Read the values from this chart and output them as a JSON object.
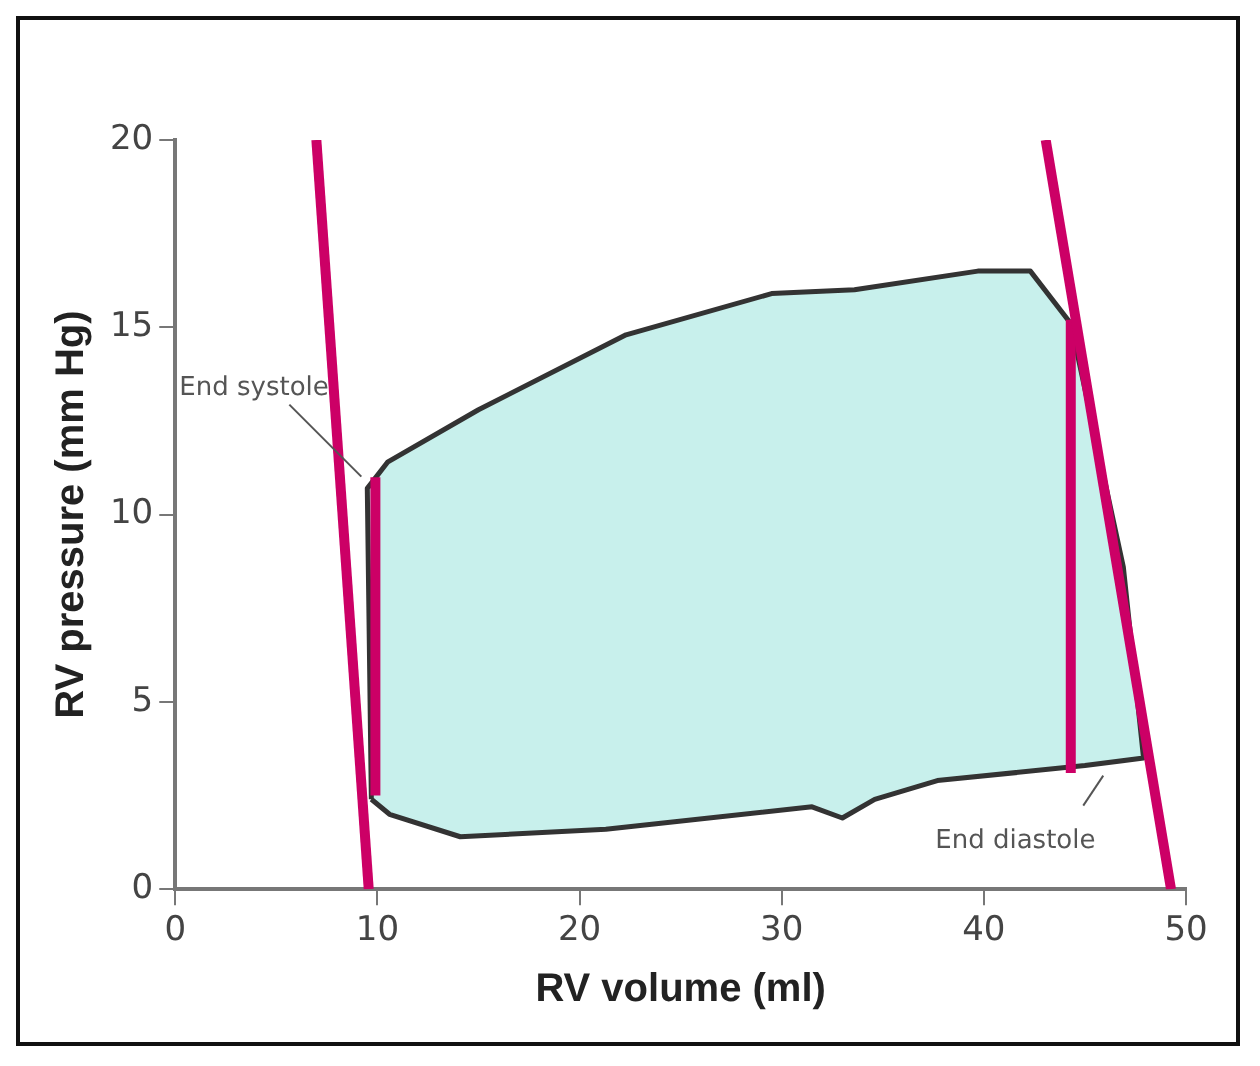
{
  "chart_data": {
    "type": "line",
    "xlabel": "RV volume (ml)",
    "ylabel": "RV pressure (mm Hg)",
    "xlim": [
      0,
      50
    ],
    "xticks": [
      0,
      10,
      20,
      30,
      40,
      50
    ],
    "ylim": [
      0,
      20
    ],
    "yticks": [
      0,
      5,
      10,
      15,
      20
    ],
    "grid": false,
    "legend": false,
    "marker": "none",
    "line_style": "solid",
    "series": [
      {
        "type": "area",
        "color": "#c8f0ec",
        "x": [
          9.7,
          9.5,
          10.5,
          15,
          22.3,
          29.5,
          33.6,
          39.7,
          42.3,
          44.3,
          46.9,
          47.9,
          45,
          37.7,
          34.6,
          33,
          31.5,
          21.3,
          14.1,
          10.6,
          9.7
        ],
        "values": [
          2.4,
          10.7,
          11.4,
          12.8,
          14.8,
          15.9,
          16,
          16.5,
          16.5,
          15.1,
          8.6,
          3.5,
          3.3,
          2.9,
          2.4,
          1.9,
          2.2,
          1.6,
          1.4,
          2,
          2.4
        ]
      },
      {
        "color": "#cc0066",
        "x": [
          6.98,
          9.57
        ],
        "values": [
          20,
          0
        ]
      },
      {
        "color": "#cc0066",
        "x": [
          43.06,
          49.26
        ],
        "values": [
          20,
          0
        ]
      },
      {
        "color": "#cc0066",
        "x": [
          9.9,
          9.9
        ],
        "values": [
          2.5,
          11
        ]
      },
      {
        "color": "#cc0066",
        "x": [
          44.3,
          44.3
        ],
        "values": [
          3.1,
          15.2
        ]
      }
    ],
    "annotations": [
      {
        "text": "End systole",
        "x": 9.6,
        "y": 10.8
      },
      {
        "text": "End diastole",
        "x": 46.5,
        "y": 3.3
      }
    ]
  }
}
